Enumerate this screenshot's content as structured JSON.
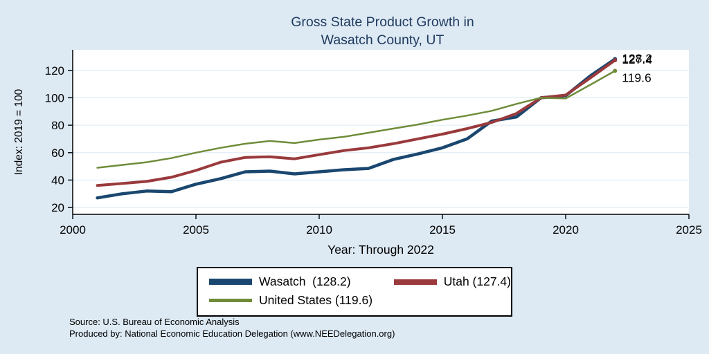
{
  "title": {
    "line1": "Gross State Product Growth in",
    "line2": "Wasatch County, UT"
  },
  "axes": {
    "y_label": "Index: 2019 = 100",
    "x_label": "Year: Through 2022",
    "y_ticks": [
      20,
      40,
      60,
      80,
      100,
      120
    ],
    "x_ticks": [
      2000,
      2005,
      2010,
      2015,
      2020,
      2025
    ]
  },
  "chart_data": {
    "type": "line",
    "title": "Gross State Product Growth in Wasatch County, UT",
    "xlabel": "Year: Through 2022",
    "ylabel": "Index: 2019 = 100",
    "xlim": [
      2000,
      2025
    ],
    "ylim": [
      15,
      135
    ],
    "grid": true,
    "legend_position": "bottom",
    "x": [
      2001,
      2002,
      2003,
      2004,
      2005,
      2006,
      2007,
      2008,
      2009,
      2010,
      2011,
      2012,
      2013,
      2014,
      2015,
      2016,
      2017,
      2018,
      2019,
      2020,
      2021,
      2022
    ],
    "series": [
      {
        "name": "Wasatch",
        "color": "#1a476f",
        "width": 4.5,
        "end_label": "128.2",
        "values": [
          27,
          30,
          32,
          31.5,
          37,
          41,
          46,
          46.5,
          44.5,
          46,
          47.5,
          48.5,
          55,
          59,
          63.5,
          70,
          83,
          86,
          100,
          101.5,
          116,
          128.2
        ]
      },
      {
        "name": "Utah",
        "color": "#9a3a3c",
        "width": 4,
        "end_label": "127.4",
        "values": [
          36,
          37.5,
          39,
          42,
          47,
          53,
          56.5,
          57,
          55.5,
          58.5,
          61.5,
          63.5,
          66.5,
          70,
          73.5,
          77.5,
          82,
          88.5,
          100,
          102,
          114.5,
          127.4
        ]
      },
      {
        "name": "United States",
        "color": "#6f8c3a",
        "width": 2.5,
        "end_label": "119.6",
        "values": [
          49,
          51,
          53,
          56,
          60,
          63.5,
          66.5,
          68.5,
          67,
          69.5,
          71.5,
          74.5,
          77.5,
          80.5,
          84,
          87,
          90.5,
          95.5,
          100,
          99.5,
          109.5,
          119.6
        ]
      }
    ]
  },
  "legend": {
    "items": [
      {
        "label": "Wasatch  (128.2)"
      },
      {
        "label": "Utah (127.4)"
      },
      {
        "label": "United States (119.6)"
      }
    ]
  },
  "footer": {
    "source": "Source: U.S. Bureau of Economic Analysis",
    "produced_by": "Produced by: National Economic Education Delegation (www.NEEDelegation.org)"
  },
  "colors": {
    "background": "#dde9f3",
    "title": "#1e3a5f",
    "plot_background": "#ffffff",
    "gridline": "#dce9f4",
    "axis": "#000000",
    "wasatch": "#1a476f",
    "utah": "#9a3a3c",
    "united_states": "#6f8c3a"
  }
}
